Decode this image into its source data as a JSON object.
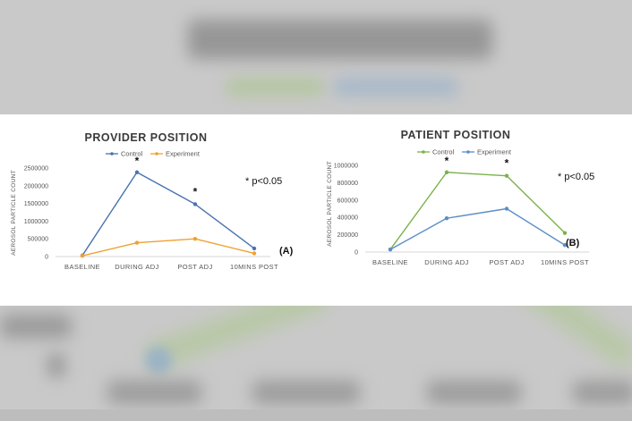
{
  "chart_data": [
    {
      "type": "line",
      "title": "PROVIDER POSITION",
      "ylabel": "AEROSOL PARTICLE COUNT",
      "xlabel": "",
      "categories": [
        "BASELINE",
        "DURING ADJ",
        "POST ADJ",
        "10MINS POST"
      ],
      "ylim": [
        0,
        2500000
      ],
      "yticks": [
        "0",
        "500000",
        "1000000",
        "1500000",
        "2000000",
        "2500000"
      ],
      "series": [
        {
          "name": "Control",
          "color": "#4a72b0",
          "values": [
            30000,
            2380000,
            1480000,
            230000
          ]
        },
        {
          "name": "Experiment",
          "color": "#f0a030",
          "values": [
            20000,
            390000,
            500000,
            90000
          ]
        }
      ],
      "significance_markers": [
        {
          "category": "DURING ADJ",
          "label": "*"
        },
        {
          "category": "POST ADJ",
          "label": "*"
        }
      ],
      "note": "* p<0.05",
      "panel_label": "(A)",
      "legend": "top",
      "grid": false
    },
    {
      "type": "line",
      "title": "PATIENT POSITION",
      "ylabel": "AEROSOL PARTICLE COUNT",
      "xlabel": "",
      "categories": [
        "BASELINE",
        "DURING ADJ",
        "POST ADJ",
        "10MINS POST"
      ],
      "ylim": [
        0,
        1000000
      ],
      "yticks": [
        "0",
        "200000",
        "400000",
        "600000",
        "800000",
        "1000000"
      ],
      "series": [
        {
          "name": "Control",
          "color": "#7ab24a",
          "values": [
            30000,
            920000,
            880000,
            220000
          ]
        },
        {
          "name": "Experiment",
          "color": "#5b8fc7",
          "values": [
            30000,
            390000,
            500000,
            80000
          ]
        }
      ],
      "significance_markers": [
        {
          "category": "DURING ADJ",
          "label": "*"
        },
        {
          "category": "POST ADJ",
          "label": "*"
        }
      ],
      "note": "* p<0.05",
      "panel_label": "(B)",
      "legend": "top",
      "grid": false
    }
  ]
}
